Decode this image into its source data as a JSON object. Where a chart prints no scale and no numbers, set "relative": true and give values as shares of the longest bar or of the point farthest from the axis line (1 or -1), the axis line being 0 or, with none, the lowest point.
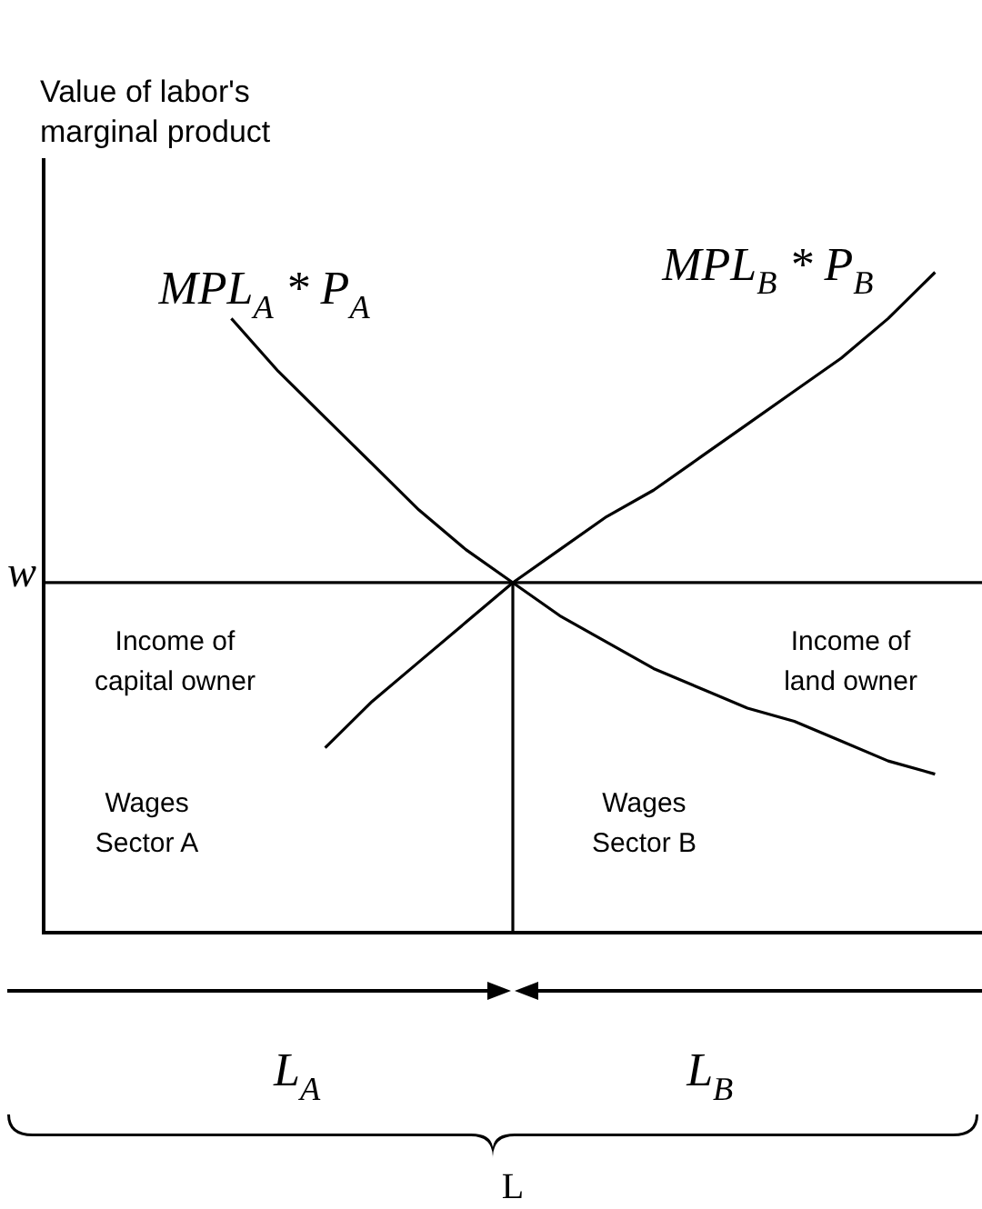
{
  "chart_data": {
    "type": "line",
    "relative": true,
    "ylabel": "Value of labor's marginal product",
    "marker": "none",
    "line_style": "solid",
    "categories": [
      null,
      null,
      null,
      null,
      null,
      null,
      null,
      null,
      null,
      null,
      null,
      null,
      null,
      null,
      null,
      null,
      null,
      null,
      null,
      null,
      null
    ],
    "series": [
      {
        "name": "MPL$_{A}$ * P$_{A}$",
        "color": "#000000",
        "values": [
          null,
          null,
          null,
          null,
          0.93,
          0.85,
          0.78,
          0.71,
          0.64,
          0.58,
          0.53,
          0.48,
          0.44,
          0.4,
          0.37,
          0.34,
          0.32,
          0.29,
          0.26,
          0.24,
          null
        ]
      },
      {
        "name": "MPL$_{B}$ * P$_{B}$",
        "color": "#000000",
        "values": [
          null,
          null,
          null,
          null,
          null,
          null,
          0.28,
          0.35,
          0.41,
          0.47,
          0.53,
          0.58,
          0.63,
          0.67,
          0.72,
          0.77,
          0.82,
          0.87,
          0.93,
          1.0,
          null
        ]
      }
    ],
    "ref_lines": [
      {
        "axis": "y",
        "value": 0.53,
        "label": "w",
        "color": "#000000"
      }
    ],
    "annotations": [
      "Income of capital owner",
      "Income of land owner",
      "Wages Sector A",
      "Wages Sector B",
      "L$_{A}$",
      "L$_{B}$",
      "L"
    ]
  }
}
